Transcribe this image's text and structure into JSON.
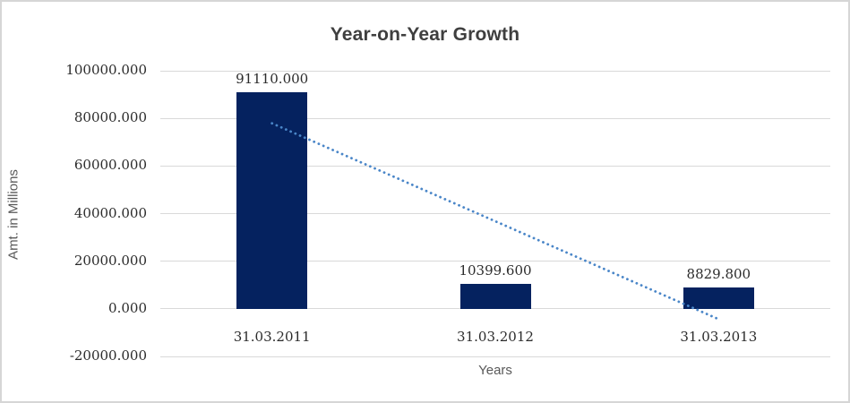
{
  "chart_data": {
    "type": "bar",
    "title": "Year-on-Year Growth",
    "xlabel": "Years",
    "ylabel": "Amt. in Millions",
    "categories": [
      "31.03.2011",
      "31.03.2012",
      "31.03.2013"
    ],
    "values": [
      91110.0,
      10399.6,
      8829.8
    ],
    "data_labels": [
      "91110.000",
      "10399.600",
      "8829.800"
    ],
    "yticks_values": [
      100000,
      80000,
      60000,
      40000,
      20000,
      0,
      -20000
    ],
    "yticks_labels": [
      "100000.000",
      "80000.000",
      "60000.000",
      "40000.000",
      "20000.000",
      "0.000",
      "-20000.000"
    ],
    "ylim": [
      -20000,
      100000
    ],
    "grid": true,
    "legend": false,
    "trendline": {
      "style": "dotted",
      "start_value": 77920,
      "end_value": -4360
    },
    "colors": {
      "bar": "#05225F",
      "trendline": "#4A86C8",
      "gridline": "#D9D9D9",
      "title_text": "#3F3F3F",
      "axis_title_text": "#595959",
      "tick_text": "#2B2B2B",
      "frame_border": "#D6D6D6"
    }
  }
}
